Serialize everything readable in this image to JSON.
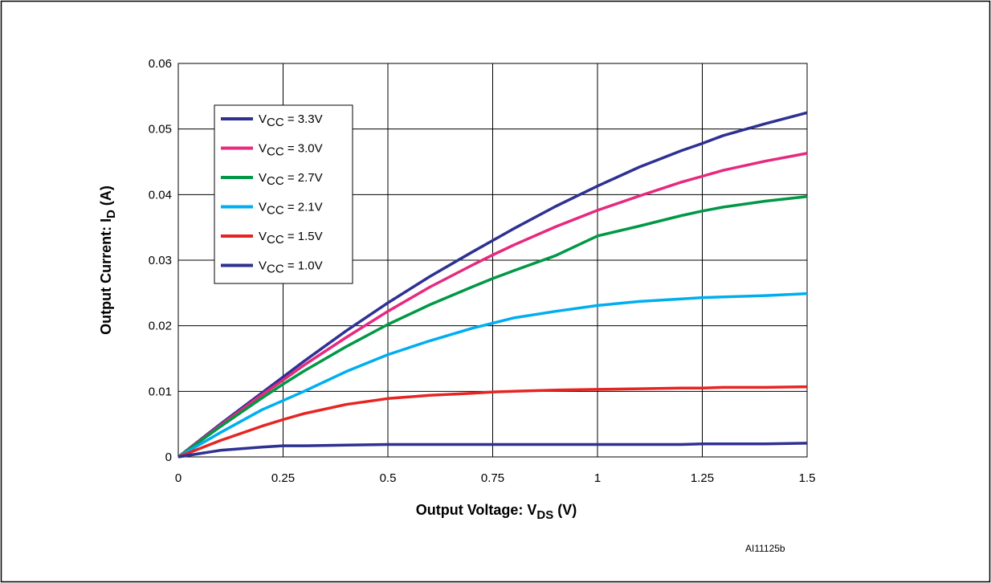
{
  "figure_ref": "AI11125b",
  "chart_data": {
    "type": "line",
    "xlabel": {
      "main": "Output Voltage: V",
      "sub": "DS",
      "unit": " (V)"
    },
    "ylabel": {
      "main": "Output Current: I",
      "sub": "D",
      "unit": " (A)"
    },
    "xlim": [
      0,
      1.5
    ],
    "ylim": [
      0,
      0.06
    ],
    "x_ticks": [
      "0",
      "0.25",
      "0.5",
      "0.75",
      "1",
      "1.25",
      "1.5"
    ],
    "y_ticks": [
      "0",
      "0.01",
      "0.02",
      "0.03",
      "0.04",
      "0.05",
      "0.06"
    ],
    "grid": true,
    "legend_position": "upper-left",
    "x": [
      0,
      0.1,
      0.2,
      0.25,
      0.3,
      0.4,
      0.5,
      0.6,
      0.7,
      0.75,
      0.8,
      0.9,
      1.0,
      1.1,
      1.2,
      1.25,
      1.3,
      1.4,
      1.5
    ],
    "series": [
      {
        "legend_main": "V",
        "legend_sub": "CC",
        "legend_rest": " = 3.3V",
        "color": "#2e3192",
        "values": [
          0,
          0.005,
          0.0098,
          0.0122,
          0.0146,
          0.0192,
          0.0235,
          0.0275,
          0.0312,
          0.033,
          0.0348,
          0.0382,
          0.0413,
          0.0442,
          0.0467,
          0.0478,
          0.049,
          0.0508,
          0.0525
        ]
      },
      {
        "legend_main": "V",
        "legend_sub": "CC",
        "legend_rest": " = 3.0V",
        "color": "#e6297e",
        "values": [
          0,
          0.0048,
          0.0095,
          0.0117,
          0.014,
          0.0182,
          0.0222,
          0.0259,
          0.0292,
          0.0308,
          0.0323,
          0.0351,
          0.0376,
          0.0398,
          0.0419,
          0.0428,
          0.0437,
          0.0451,
          0.0463
        ]
      },
      {
        "legend_main": "V",
        "legend_sub": "CC",
        "legend_rest": " = 2.7V",
        "color": "#009846",
        "values": [
          0,
          0.0046,
          0.009,
          0.0111,
          0.0131,
          0.0168,
          0.0202,
          0.0232,
          0.0259,
          0.0272,
          0.0284,
          0.0307,
          0.0337,
          0.0352,
          0.0368,
          0.0375,
          0.0381,
          0.039,
          0.0397
        ]
      },
      {
        "legend_main": "V",
        "legend_sub": "CC",
        "legend_rest": " = 2.1V",
        "color": "#00aeef",
        "values": [
          0,
          0.0037,
          0.0072,
          0.0086,
          0.01,
          0.013,
          0.0156,
          0.0177,
          0.0196,
          0.0204,
          0.0212,
          0.0222,
          0.0231,
          0.0237,
          0.0241,
          0.0243,
          0.0244,
          0.0246,
          0.0249
        ]
      },
      {
        "legend_main": "V",
        "legend_sub": "CC",
        "legend_rest": " = 1.5V",
        "color": "#e52521",
        "values": [
          0,
          0.0025,
          0.0047,
          0.0057,
          0.0066,
          0.008,
          0.0089,
          0.0094,
          0.0097,
          0.0099,
          0.01,
          0.0102,
          0.0103,
          0.0104,
          0.0105,
          0.0105,
          0.0106,
          0.0106,
          0.0107
        ]
      },
      {
        "legend_main": "V",
        "legend_sub": "CC",
        "legend_rest": " = 1.0V",
        "color": "#2e3192",
        "values": [
          0,
          0.001,
          0.0015,
          0.0017,
          0.0017,
          0.0018,
          0.0019,
          0.0019,
          0.0019,
          0.0019,
          0.0019,
          0.0019,
          0.0019,
          0.0019,
          0.0019,
          0.002,
          0.002,
          0.002,
          0.0021
        ]
      }
    ]
  }
}
